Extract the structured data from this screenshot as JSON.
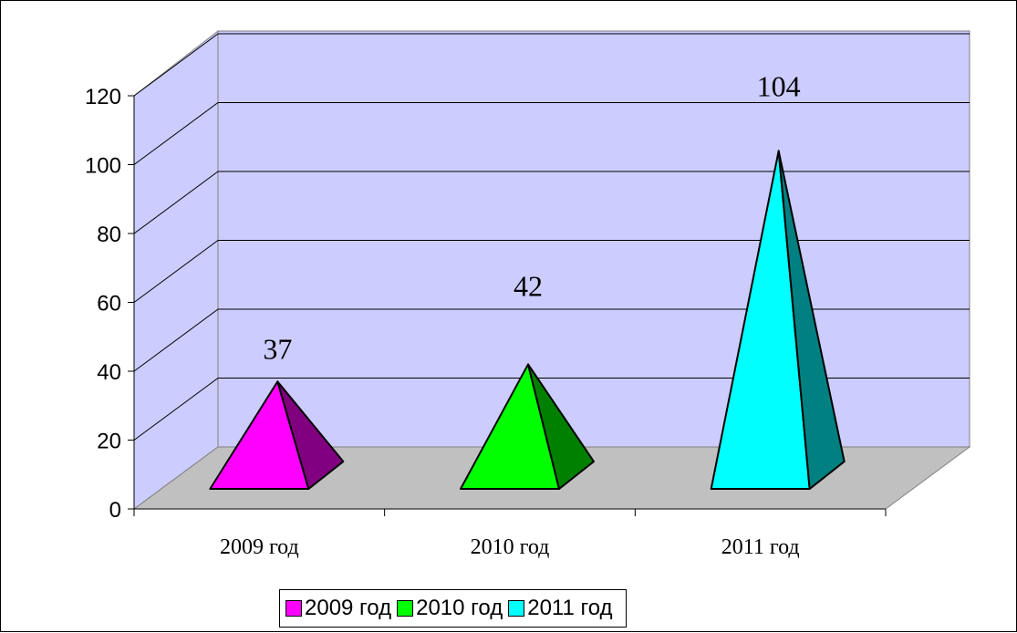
{
  "chart_data": {
    "type": "bar",
    "style": "3d-pyramid",
    "categories": [
      "2009 год",
      "2010 год",
      "2011 год"
    ],
    "values": [
      37,
      42,
      104
    ],
    "data_labels": [
      "37",
      "42",
      "104"
    ],
    "ylim": [
      0,
      120
    ],
    "y_ticks": [
      "0",
      "20",
      "40",
      "60",
      "80",
      "100",
      "120"
    ],
    "grid": true,
    "legend": {
      "position": "bottom",
      "entries": [
        "2009 год",
        "2010 год",
        "2011 год"
      ]
    },
    "colors": {
      "front": [
        "#ff00ff",
        "#00ff00",
        "#00ffff"
      ],
      "side": [
        "#800080",
        "#008000",
        "#008080"
      ],
      "back_wall": "#ccccff",
      "floor": "#c0c0c0"
    }
  }
}
